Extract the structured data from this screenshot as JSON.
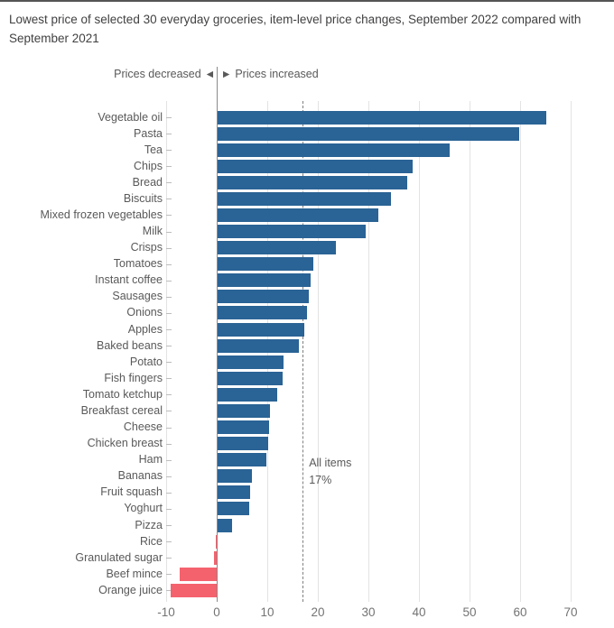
{
  "page": {
    "title": "Lowest price of selected 30 everyday groceries, item-level price changes, September 2022 compared with September 2021"
  },
  "direction_labels": {
    "decreased": "Prices decreased",
    "increased": "Prices increased",
    "decreased_arrow": "◀",
    "increased_arrow": "▶"
  },
  "annotation": {
    "line1": "All items",
    "line2": "17%"
  },
  "colors": {
    "increase_bar": "#2A6395",
    "decrease_bar": "#F4626D",
    "zero_line": "#8A8A8A",
    "gridline": "#E3E3E3",
    "dashed_reference": "#7F7F7F",
    "title_text": "#414042",
    "label_text": "#595959",
    "tick_text": "#737373"
  },
  "chart_data": {
    "type": "bar",
    "orientation": "horizontal",
    "title": "Lowest price of selected 30 everyday groceries, item-level price changes, September 2022 compared with September 2021",
    "xlabel": "",
    "ylabel": "",
    "xlim": [
      -10,
      75
    ],
    "x_ticks": [
      -10,
      0,
      10,
      20,
      30,
      40,
      50,
      60,
      70
    ],
    "grid": "vertical",
    "legend": "none",
    "reference_line": {
      "value": 17,
      "label": "All items 17%",
      "style": "dashed"
    },
    "categories": [
      "Vegetable oil",
      "Pasta",
      "Tea",
      "Chips",
      "Bread",
      "Biscuits",
      "Mixed frozen vegetables",
      "Milk",
      "Crisps",
      "Tomatoes",
      "Instant coffee",
      "Sausages",
      "Onions",
      "Apples",
      "Baked beans",
      "Potato",
      "Fish fingers",
      "Tomato ketchup",
      "Breakfast cereal",
      "Cheese",
      "Chicken breast",
      "Ham",
      "Bananas",
      "Fruit squash",
      "Yoghurt",
      "Pizza",
      "Rice",
      "Granulated sugar",
      "Beef mince",
      "Orange juice"
    ],
    "values": [
      65.2,
      59.9,
      46.0,
      38.7,
      37.6,
      34.4,
      31.9,
      29.4,
      23.5,
      19.1,
      18.5,
      18.2,
      17.9,
      17.3,
      16.2,
      13.2,
      13.0,
      11.9,
      10.6,
      10.4,
      10.1,
      9.8,
      7.0,
      6.6,
      6.5,
      3.1,
      -0.2,
      -0.6,
      -7.3,
      -9.1
    ]
  }
}
